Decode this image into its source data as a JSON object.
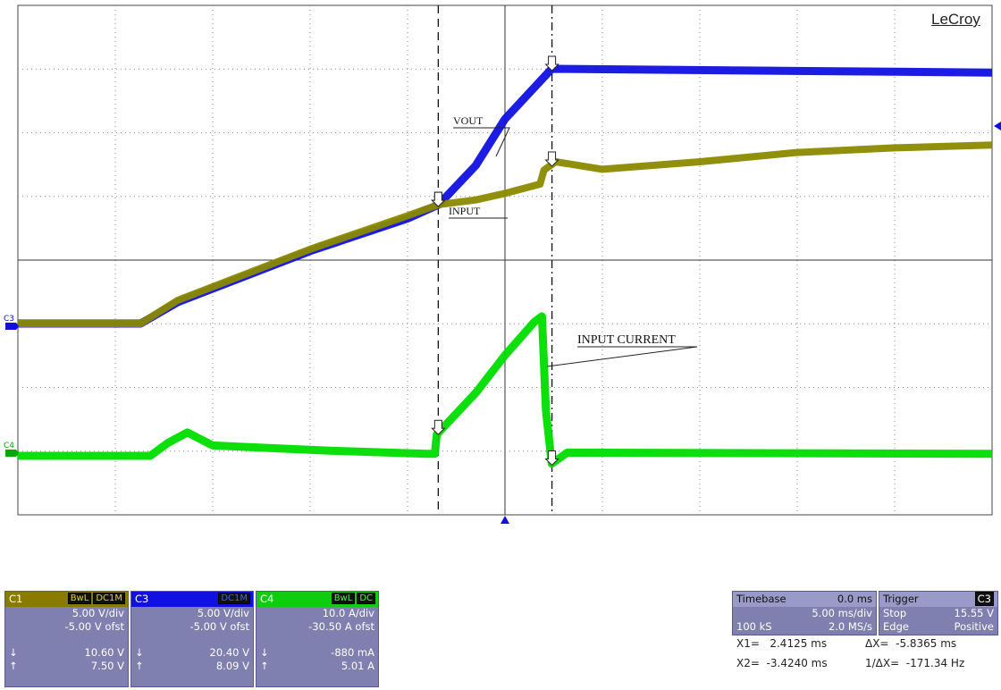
{
  "brand": "LeCroy",
  "chart_data": {
    "type": "line",
    "title": "",
    "xlabel": "",
    "ylabel": "",
    "grid": true,
    "x_divisions": 10,
    "y_divisions": 8,
    "x_unit": "ms",
    "xlim": [
      -25,
      25
    ],
    "series": [
      {
        "name": "VOUT",
        "channel": "C3",
        "color": "#1010e0",
        "scale": "5.00 V/div",
        "offset": "-5.00 V ofst",
        "points": [
          [
            -25,
            0
          ],
          [
            -18.7,
            0
          ],
          [
            -16.8,
            2.3
          ],
          [
            -10,
            7.8
          ],
          [
            -5,
            11.3
          ],
          [
            -3.4,
            12.8
          ],
          [
            -1.5,
            17
          ],
          [
            0,
            22
          ],
          [
            2.4,
            27.4
          ],
          [
            25,
            27
          ]
        ]
      },
      {
        "name": "INPUT",
        "channel": "C1",
        "color": "#8a8a00",
        "scale": "5.00 V/div",
        "offset": "-5.00 V ofst",
        "points": [
          [
            -25,
            0
          ],
          [
            -18.7,
            0
          ],
          [
            -16.8,
            2.5
          ],
          [
            -10,
            8
          ],
          [
            -5,
            11.6
          ],
          [
            -3.4,
            12.8
          ],
          [
            -1.5,
            13.3
          ],
          [
            0,
            14
          ],
          [
            1.8,
            15
          ],
          [
            2,
            16.5
          ],
          [
            2.6,
            17.4
          ],
          [
            5,
            16.6
          ],
          [
            10,
            17.4
          ],
          [
            15,
            18.4
          ],
          [
            20,
            18.9
          ],
          [
            25,
            19.2
          ]
        ]
      },
      {
        "name": "INPUT CURRENT",
        "channel": "C4",
        "color": "#00dd00",
        "scale": "10.0 A/div",
        "offset": "-30.50 A ofst",
        "points": [
          [
            -25,
            0
          ],
          [
            -18.2,
            0
          ],
          [
            -17.3,
            2
          ],
          [
            -16.3,
            3.6
          ],
          [
            -15,
            1.6
          ],
          [
            -9,
            0.8
          ],
          [
            -4,
            0.3
          ],
          [
            -3.6,
            0.3
          ],
          [
            -3.5,
            3.3
          ],
          [
            -1.5,
            9.7
          ],
          [
            0,
            15.5
          ],
          [
            1.5,
            20.6
          ],
          [
            1.9,
            21.5
          ],
          [
            2.1,
            7
          ],
          [
            2.4,
            -1.2
          ],
          [
            3.2,
            0.5
          ],
          [
            25,
            0.3
          ]
        ]
      }
    ],
    "annotations": [
      {
        "text": "VOUT",
        "x": -3.8,
        "y": 9.9
      },
      {
        "text": "INPUT",
        "x": -3.6,
        "y": 10.4
      },
      {
        "text": "INPUT CURRENT",
        "x": 3.7,
        "y": 5.3
      }
    ],
    "cursors": [
      {
        "x": -3.424,
        "style": "dashed"
      },
      {
        "x": 2.4125,
        "style": "dash-dot"
      }
    ]
  },
  "markers": {
    "c3": "C3",
    "c4": "C4"
  },
  "panels": {
    "c1": {
      "name": "C1",
      "tags": [
        "BwL",
        "DC1M"
      ],
      "vdiv": "5.00 V/div",
      "ofst": "-5.00 V ofst",
      "down": "10.60 V",
      "up": "7.50 V",
      "down_arrow": "↓",
      "up_arrow": "↑"
    },
    "c3": {
      "name": "C3",
      "tags": [
        "DC1M"
      ],
      "vdiv": "5.00 V/div",
      "ofst": "-5.00 V ofst",
      "down": "20.40 V",
      "up": "8.09 V",
      "down_arrow": "↓",
      "up_arrow": "↑"
    },
    "c4": {
      "name": "C4",
      "tags": [
        "BwL",
        "DC"
      ],
      "vdiv": "10.0 A/div",
      "ofst": "-30.50 A ofst",
      "down": "-880 mA",
      "up": "5.01 A",
      "down_arrow": "↓",
      "up_arrow": "↑"
    }
  },
  "timebase": {
    "label": "Timebase",
    "delay": "0.0 ms",
    "div": "5.00 ms/div",
    "samples": "100 kS",
    "rate": "2.0 MS/s"
  },
  "trigger": {
    "label": "Trigger",
    "source": "C3",
    "mode": "Stop",
    "level": "15.55 V",
    "type": "Edge",
    "slope": "Positive"
  },
  "measure": {
    "x1": "X1=   2.4125 ms",
    "dx": "ΔX=  -5.8365 ms",
    "x2": "X2=  -3.4240 ms",
    "inv": "1/ΔX=  -171.34 Hz"
  }
}
